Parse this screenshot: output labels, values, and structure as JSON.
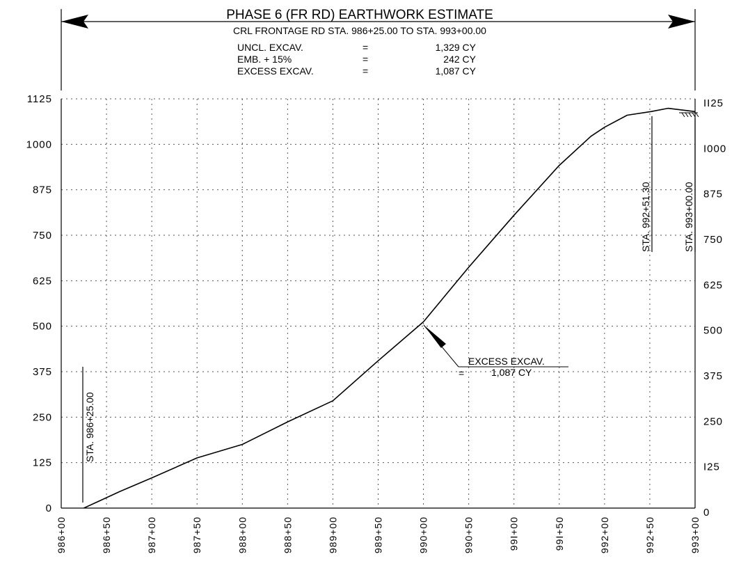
{
  "header": {
    "title": "PHASE 6 (FR RD) EARTHWORK ESTIMATE",
    "subtitle": "CRL FRONTAGE RD STA. 986+25.00 TO STA. 993+00.00"
  },
  "summary": [
    {
      "label": "UNCL. EXCAV.",
      "eq": "=",
      "value": "1,329 CY"
    },
    {
      "label": "EMB. + 15%",
      "eq": "=",
      "value": "242 CY"
    },
    {
      "label": "EXCESS EXCAV.",
      "eq": "=",
      "value": "1,087 CY"
    }
  ],
  "annotations": {
    "start_station": "STA. 986+25.00",
    "balance_station": "STA. 992+51.30",
    "end_station": "STA. 993+00.00",
    "excess_label": "EXCESS EXCAV.",
    "excess_eq": "=",
    "excess_value": "1,087 CY"
  },
  "chart_data": {
    "type": "line",
    "title": "PHASE 6 (FR RD) EARTHWORK ESTIMATE",
    "xlabel": "",
    "ylabel": "",
    "x_unit": "station (ft)",
    "xlim": [
      98600,
      99300
    ],
    "ylim": [
      0,
      1125
    ],
    "grid": true,
    "y_ticks_left": [
      "0",
      "125",
      "250",
      "375",
      "500",
      "625",
      "750",
      "875",
      "1000",
      "1125"
    ],
    "y_ticks_right": [
      "0",
      "I25",
      "250",
      "375",
      "500",
      "625",
      "750",
      "875",
      "I000",
      "II25"
    ],
    "y_tick_values": [
      0,
      125,
      250,
      375,
      500,
      625,
      750,
      875,
      1000,
      1125
    ],
    "x_ticks": [
      "986+00",
      "986+50",
      "987+00",
      "987+50",
      "988+00",
      "988+50",
      "989+00",
      "989+50",
      "990+00",
      "990+50",
      "99I+00",
      "99I+50",
      "992+00",
      "992+50",
      "993+00"
    ],
    "x_tick_values": [
      98600,
      98650,
      98700,
      98750,
      98800,
      98850,
      98900,
      98950,
      99000,
      99050,
      99100,
      99150,
      99200,
      99250,
      99300
    ],
    "series": [
      {
        "x": [
          98625,
          98645,
          98665,
          98700,
          98750,
          98800,
          98850,
          98900,
          98950,
          99000,
          99050,
          99100,
          99150,
          99185,
          99200,
          99225,
          99251.3,
          99270,
          99300
        ],
        "y": [
          0,
          23,
          46,
          83,
          138,
          175,
          237,
          295,
          405,
          512,
          662,
          805,
          942,
          1022,
          1047,
          1080,
          1090,
          1099,
          1090
        ]
      }
    ]
  }
}
